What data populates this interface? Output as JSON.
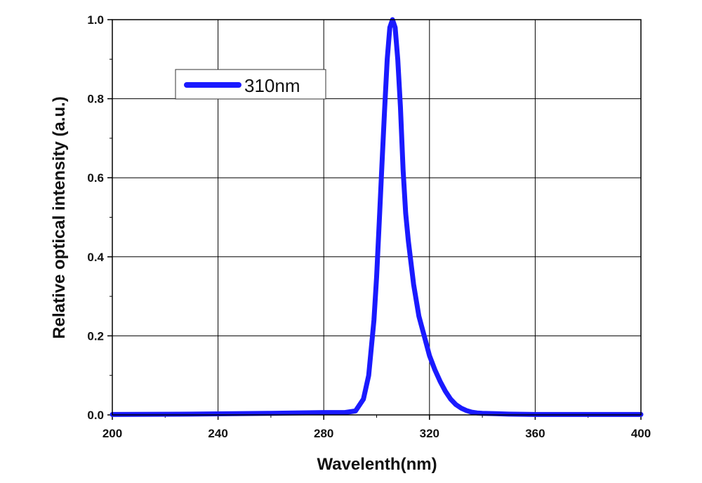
{
  "chart_data": {
    "type": "line",
    "title": "",
    "xlabel": "Wavelenth(nm)",
    "ylabel": "Relative optical intensity (a.u.)",
    "xlim": [
      200,
      400
    ],
    "ylim": [
      0,
      1.0
    ],
    "x_ticks": [
      "200",
      "240",
      "280",
      "320",
      "360",
      "400"
    ],
    "y_ticks": [
      "0.0",
      "0.2",
      "0.4",
      "0.6",
      "0.8",
      "1.0"
    ],
    "grid": true,
    "legend": {
      "position": "top-left",
      "entries": [
        "310nm"
      ]
    },
    "series": [
      {
        "name": "310nm",
        "color": "#1a1aff",
        "x": [
          200,
          230,
          260,
          280,
          288,
          292,
          295,
          297,
          299,
          300,
          301,
          302,
          303,
          304,
          305,
          306,
          307,
          308,
          309,
          310,
          311,
          312,
          314,
          316,
          318,
          320,
          322,
          324,
          326,
          328,
          330,
          332,
          334,
          336,
          338,
          340,
          345,
          350,
          360,
          380,
          400
        ],
        "y": [
          0.001,
          0.002,
          0.004,
          0.006,
          0.006,
          0.01,
          0.04,
          0.1,
          0.24,
          0.35,
          0.49,
          0.63,
          0.77,
          0.9,
          0.98,
          1.0,
          0.98,
          0.9,
          0.78,
          0.62,
          0.51,
          0.44,
          0.33,
          0.25,
          0.2,
          0.15,
          0.115,
          0.085,
          0.06,
          0.04,
          0.026,
          0.017,
          0.011,
          0.007,
          0.005,
          0.004,
          0.003,
          0.002,
          0.001,
          0.001,
          0.001
        ]
      }
    ]
  }
}
